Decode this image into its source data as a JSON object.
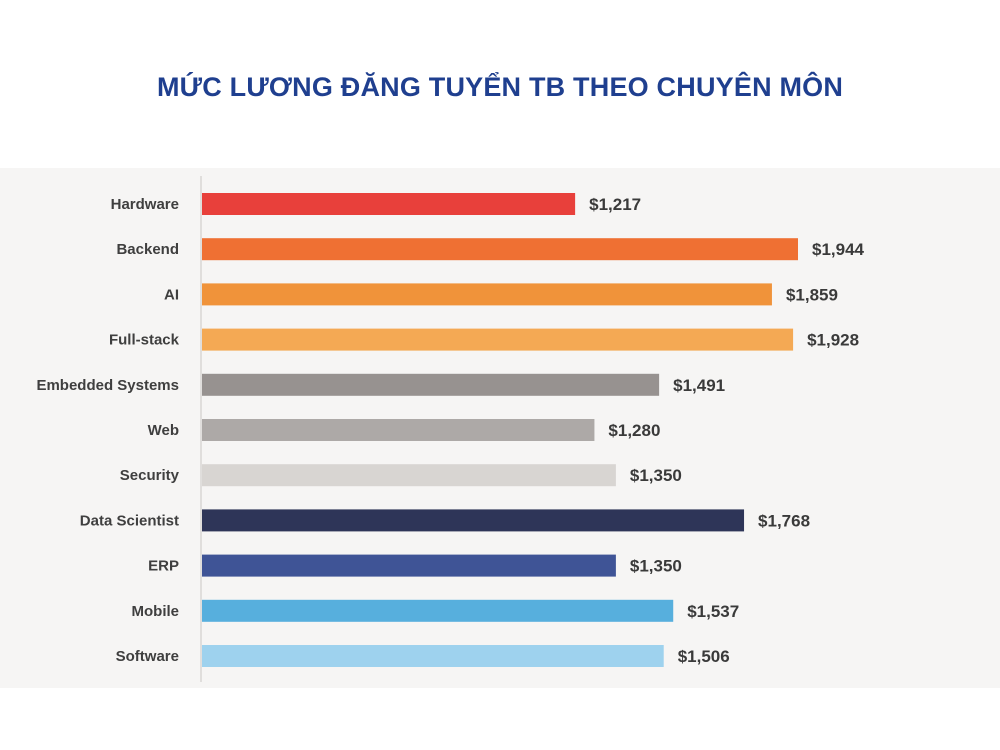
{
  "chart_data": {
    "type": "bar",
    "orientation": "horizontal",
    "title": "MỨC LƯƠNG ĐĂNG TUYỂN TB THEO CHUYÊN MÔN",
    "categories": [
      "Hardware",
      "Backend",
      "AI",
      "Full-stack",
      "Embedded Systems",
      "Web",
      "Security",
      "Data Scientist",
      "ERP",
      "Mobile",
      "Software"
    ],
    "values": [
      1217,
      1944,
      1859,
      1928,
      1491,
      1280,
      1350,
      1768,
      1350,
      1537,
      1506
    ],
    "value_labels": [
      "$1,217",
      "$1,944",
      "$1,859",
      "$1,928",
      "$1,491",
      "$1,280",
      "$1,350",
      "$1,768",
      "$1,350",
      "$1,537",
      "$1,506"
    ],
    "colors": [
      "#e8403b",
      "#ef7033",
      "#f0933a",
      "#f4a954",
      "#979290",
      "#ada9a7",
      "#d8d5d2",
      "#2e3558",
      "#3f5496",
      "#57afdd",
      "#9ed2ee"
    ],
    "xlim": [
      0,
      1944
    ],
    "grid": false,
    "legend": "none"
  }
}
